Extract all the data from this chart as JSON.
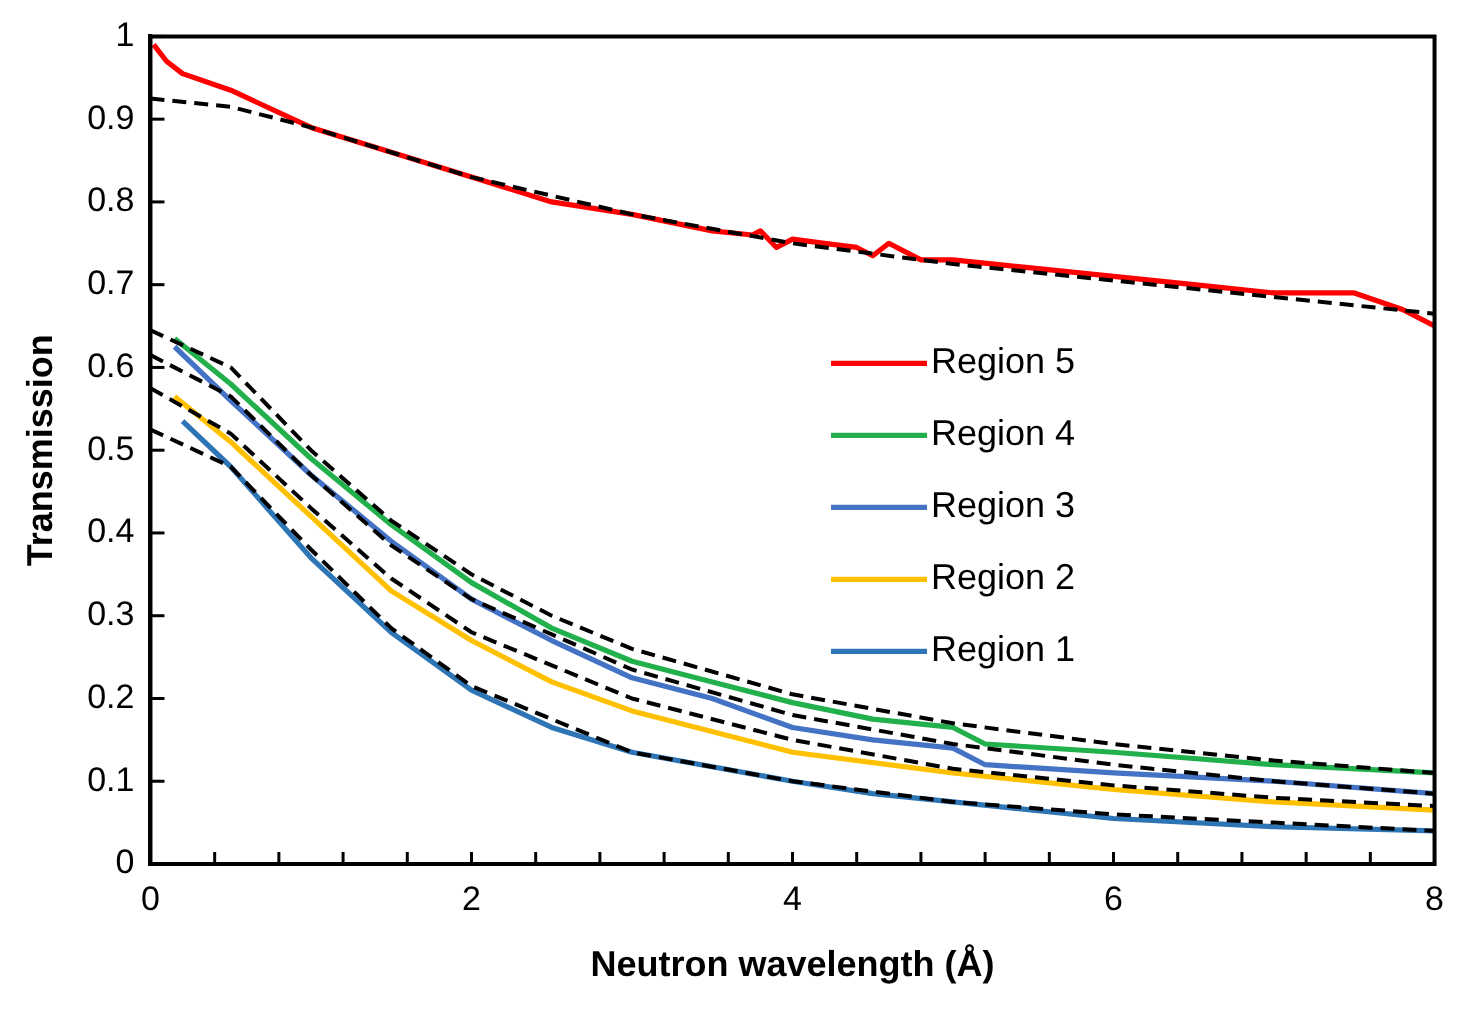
{
  "chart_data": {
    "type": "line",
    "xlabel": "Neutron wavelength (Å)",
    "ylabel": "Transmission",
    "xlim": [
      0,
      8
    ],
    "ylim": [
      0,
      1
    ],
    "xticks": [
      0,
      {
        "value": 0.4,
        "label": null
      },
      {
        "value": 0.8,
        "label": null
      },
      {
        "value": 1.2,
        "label": null
      },
      {
        "value": 1.6,
        "label": null
      },
      2,
      {
        "value": 2.4,
        "label": null
      },
      {
        "value": 2.8,
        "label": null
      },
      {
        "value": 3.2,
        "label": null
      },
      {
        "value": 3.6,
        "label": null
      },
      4,
      {
        "value": 4.4,
        "label": null
      },
      {
        "value": 4.8,
        "label": null
      },
      {
        "value": 5.2,
        "label": null
      },
      {
        "value": 5.6,
        "label": null
      },
      6,
      {
        "value": 6.4,
        "label": null
      },
      {
        "value": 6.8,
        "label": null
      },
      {
        "value": 7.2,
        "label": null
      },
      {
        "value": 7.6,
        "label": null
      },
      8
    ],
    "yticks": [
      0,
      0.1,
      0.2,
      0.3,
      0.4,
      0.5,
      0.6,
      0.7,
      0.8,
      0.9,
      1
    ],
    "grid": false,
    "legend": "right",
    "marker": "none",
    "series": [
      {
        "name": "Region 5",
        "color": "#ff0000",
        "line_style": "solid",
        "x": [
          0.02,
          0.1,
          0.2,
          0.5,
          1,
          1.5,
          2,
          2.5,
          3,
          3.5,
          3.75,
          3.8,
          3.9,
          4,
          4.2,
          4.4,
          4.5,
          4.6,
          4.8,
          5,
          5.5,
          6,
          6.5,
          7,
          7.5,
          7.8,
          8
        ],
        "values": [
          0.99,
          0.97,
          0.955,
          0.935,
          0.89,
          0.86,
          0.83,
          0.8,
          0.785,
          0.765,
          0.76,
          0.765,
          0.745,
          0.755,
          0.75,
          0.745,
          0.735,
          0.75,
          0.73,
          0.73,
          0.72,
          0.71,
          0.7,
          0.69,
          0.69,
          0.67,
          0.65
        ]
      },
      {
        "name": "Region 4",
        "color": "#22b04c",
        "line_style": "solid",
        "x": [
          0.15,
          0.5,
          1,
          1.5,
          2,
          2.5,
          3,
          3.5,
          4,
          4.5,
          5,
          5.2,
          6,
          7,
          8
        ],
        "values": [
          0.635,
          0.58,
          0.49,
          0.41,
          0.34,
          0.285,
          0.245,
          0.22,
          0.195,
          0.175,
          0.165,
          0.145,
          0.135,
          0.12,
          0.11
        ]
      },
      {
        "name": "Region 3",
        "color": "#4472c4",
        "line_style": "solid",
        "x": [
          0.15,
          0.5,
          1,
          1.5,
          2,
          2.5,
          3,
          3.5,
          4,
          4.5,
          5,
          5.2,
          6,
          7,
          8
        ],
        "values": [
          0.625,
          0.56,
          0.47,
          0.39,
          0.32,
          0.27,
          0.225,
          0.2,
          0.165,
          0.15,
          0.14,
          0.12,
          0.11,
          0.1,
          0.085
        ]
      },
      {
        "name": "Region 2",
        "color": "#ffc000",
        "line_style": "solid",
        "x": [
          0.15,
          0.5,
          1,
          1.5,
          2,
          2.5,
          3,
          4,
          5,
          6,
          7,
          8
        ],
        "values": [
          0.565,
          0.51,
          0.42,
          0.33,
          0.27,
          0.22,
          0.185,
          0.135,
          0.11,
          0.09,
          0.075,
          0.065
        ]
      },
      {
        "name": "Region 1",
        "color": "#2e75b6",
        "line_style": "solid",
        "x": [
          0.2,
          0.5,
          1,
          1.5,
          2,
          2.5,
          3,
          4,
          4.5,
          5,
          6,
          7,
          8
        ],
        "values": [
          0.535,
          0.48,
          0.37,
          0.28,
          0.21,
          0.165,
          0.135,
          0.1,
          0.085,
          0.075,
          0.055,
          0.045,
          0.04
        ]
      },
      {
        "color": "#000000",
        "line_style": "dashed",
        "x": [
          0,
          0.5,
          1,
          1.5,
          2,
          3,
          4,
          5,
          6,
          7,
          8
        ],
        "values": [
          0.925,
          0.915,
          0.89,
          0.86,
          0.83,
          0.785,
          0.75,
          0.725,
          0.705,
          0.685,
          0.665
        ]
      },
      {
        "color": "#000000",
        "line_style": "dashed",
        "x": [
          0,
          0.5,
          1,
          1.5,
          2,
          2.5,
          3,
          4,
          5,
          6,
          7,
          8
        ],
        "values": [
          0.645,
          0.6,
          0.5,
          0.415,
          0.35,
          0.3,
          0.26,
          0.205,
          0.17,
          0.145,
          0.125,
          0.11
        ]
      },
      {
        "color": "#000000",
        "line_style": "dashed",
        "x": [
          0,
          0.5,
          1,
          1.5,
          2,
          3,
          4,
          5,
          6,
          7,
          8
        ],
        "values": [
          0.615,
          0.565,
          0.47,
          0.385,
          0.32,
          0.235,
          0.18,
          0.145,
          0.12,
          0.1,
          0.085
        ]
      },
      {
        "color": "#000000",
        "line_style": "dashed",
        "x": [
          0,
          0.5,
          1,
          1.5,
          2,
          3,
          4,
          5,
          6,
          7,
          8
        ],
        "values": [
          0.575,
          0.52,
          0.43,
          0.345,
          0.28,
          0.2,
          0.15,
          0.115,
          0.095,
          0.08,
          0.07
        ]
      },
      {
        "color": "#000000",
        "line_style": "dashed",
        "x": [
          0,
          0.5,
          1,
          1.5,
          2,
          3,
          4,
          5,
          6,
          7,
          8
        ],
        "values": [
          0.525,
          0.48,
          0.38,
          0.285,
          0.215,
          0.135,
          0.1,
          0.075,
          0.06,
          0.05,
          0.04
        ]
      }
    ]
  }
}
